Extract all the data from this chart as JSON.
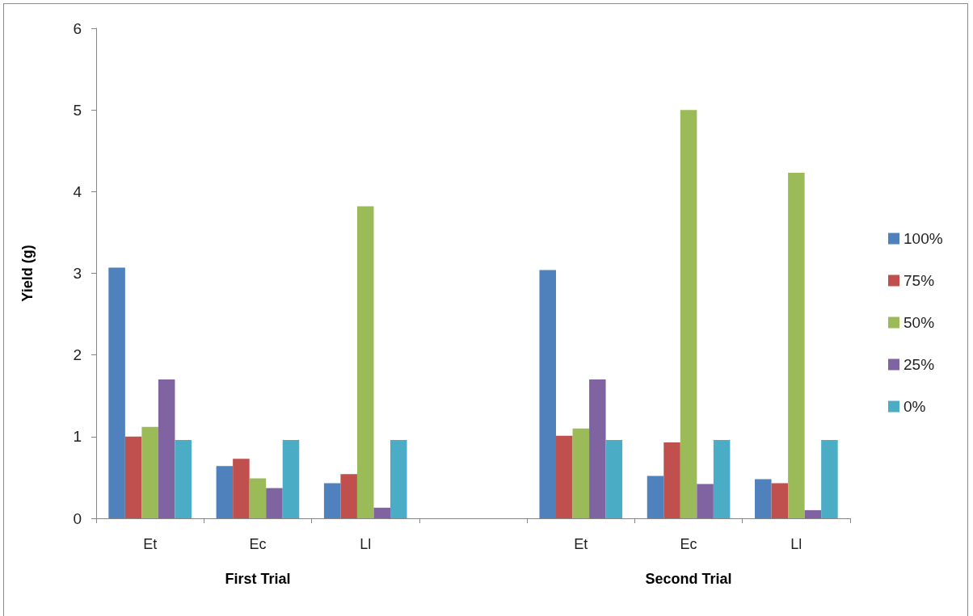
{
  "chart_data": {
    "type": "bar",
    "ylabel": "Yield (g)",
    "categories": [
      "Et",
      "Ec",
      "Ll",
      null,
      "Et",
      "Ec",
      "Ll"
    ],
    "series": [
      {
        "name": "100%",
        "color": "#4f81bd",
        "values": [
          3.07,
          0.64,
          0.43,
          null,
          3.04,
          0.52,
          0.48
        ]
      },
      {
        "name": "75%",
        "color": "#c0504d",
        "values": [
          1.0,
          0.73,
          0.54,
          null,
          1.01,
          0.93,
          0.43
        ]
      },
      {
        "name": "50%",
        "color": "#9bbb59",
        "values": [
          1.12,
          0.49,
          3.82,
          null,
          1.1,
          5.0,
          4.23
        ]
      },
      {
        "name": "25%",
        "color": "#8064a2",
        "values": [
          1.7,
          0.37,
          0.13,
          null,
          1.7,
          0.42,
          0.1
        ]
      },
      {
        "name": "0%",
        "color": "#4bacc6",
        "values": [
          0.96,
          0.96,
          0.96,
          null,
          0.96,
          0.96,
          0.96
        ]
      }
    ],
    "ylim": [
      0,
      6
    ],
    "yticks": [
      0,
      1,
      2,
      3,
      4,
      5,
      6
    ],
    "annotations": [
      "First Trial",
      "Second Trial"
    ],
    "legend": "right"
  }
}
